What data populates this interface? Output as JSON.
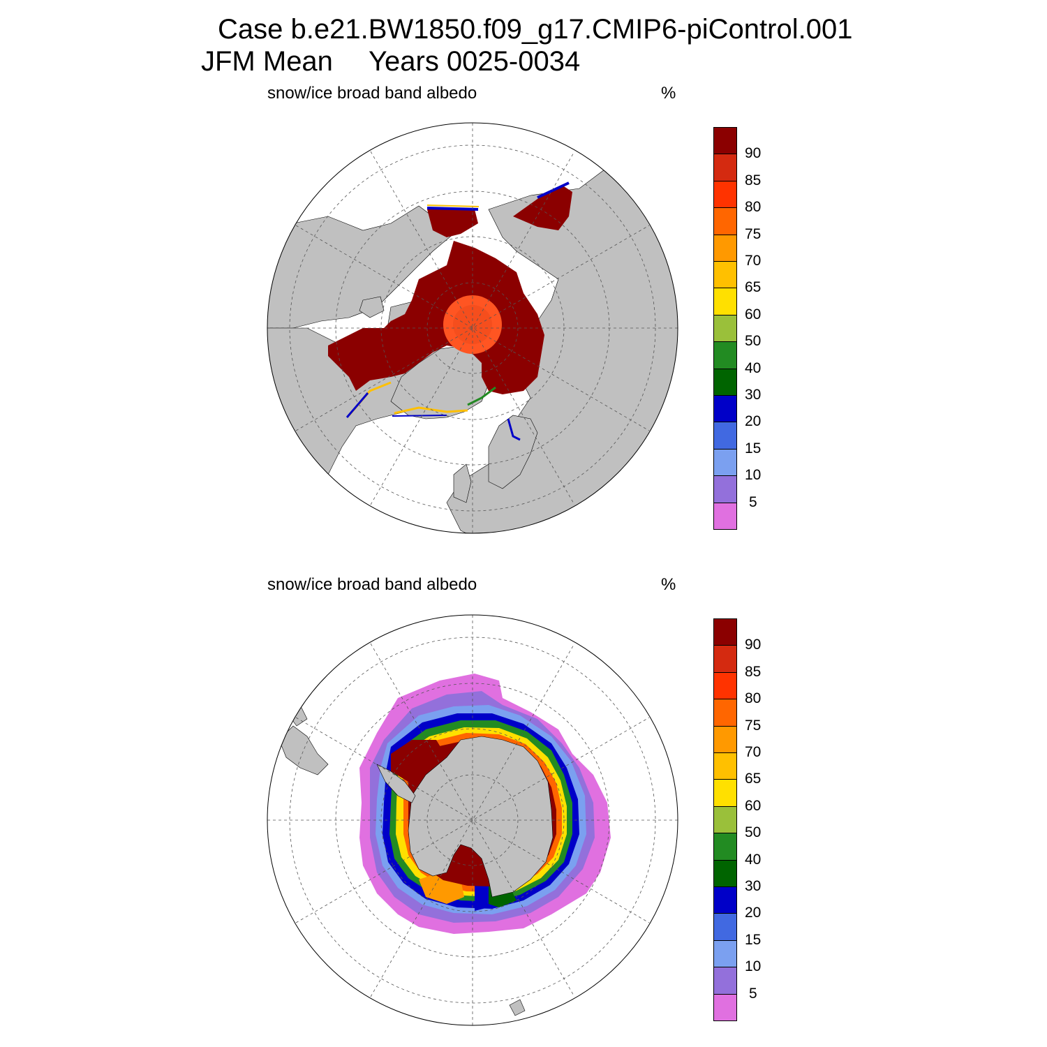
{
  "title": {
    "line1": "Case b.e21.BW1850.f09_g17.CMIP6-piControl.001",
    "line2_left": "JFM Mean",
    "line2_right": "Years 0025-0034"
  },
  "panels": [
    {
      "variable_label": "snow/ice broad band albedo",
      "units_label": "%"
    },
    {
      "variable_label": "snow/ice broad band albedo",
      "units_label": "%"
    }
  ],
  "colorbar": {
    "colors": [
      "#8b0000",
      "#d42a10",
      "#ff3300",
      "#ff6600",
      "#ff9900",
      "#ffc000",
      "#ffe000",
      "#9ac03a",
      "#228b22",
      "#006400",
      "#0000c8",
      "#4169e1",
      "#7ba0f0",
      "#9370db",
      "#e070e0"
    ],
    "labels": [
      "90",
      "85",
      "80",
      "75",
      "70",
      "65",
      "60",
      "50",
      "40",
      "30",
      "20",
      "15",
      "10",
      "5"
    ]
  },
  "map_colors": {
    "land": "#c0c0c0",
    "ocean": "#ffffff",
    "grid": "#555555"
  }
}
